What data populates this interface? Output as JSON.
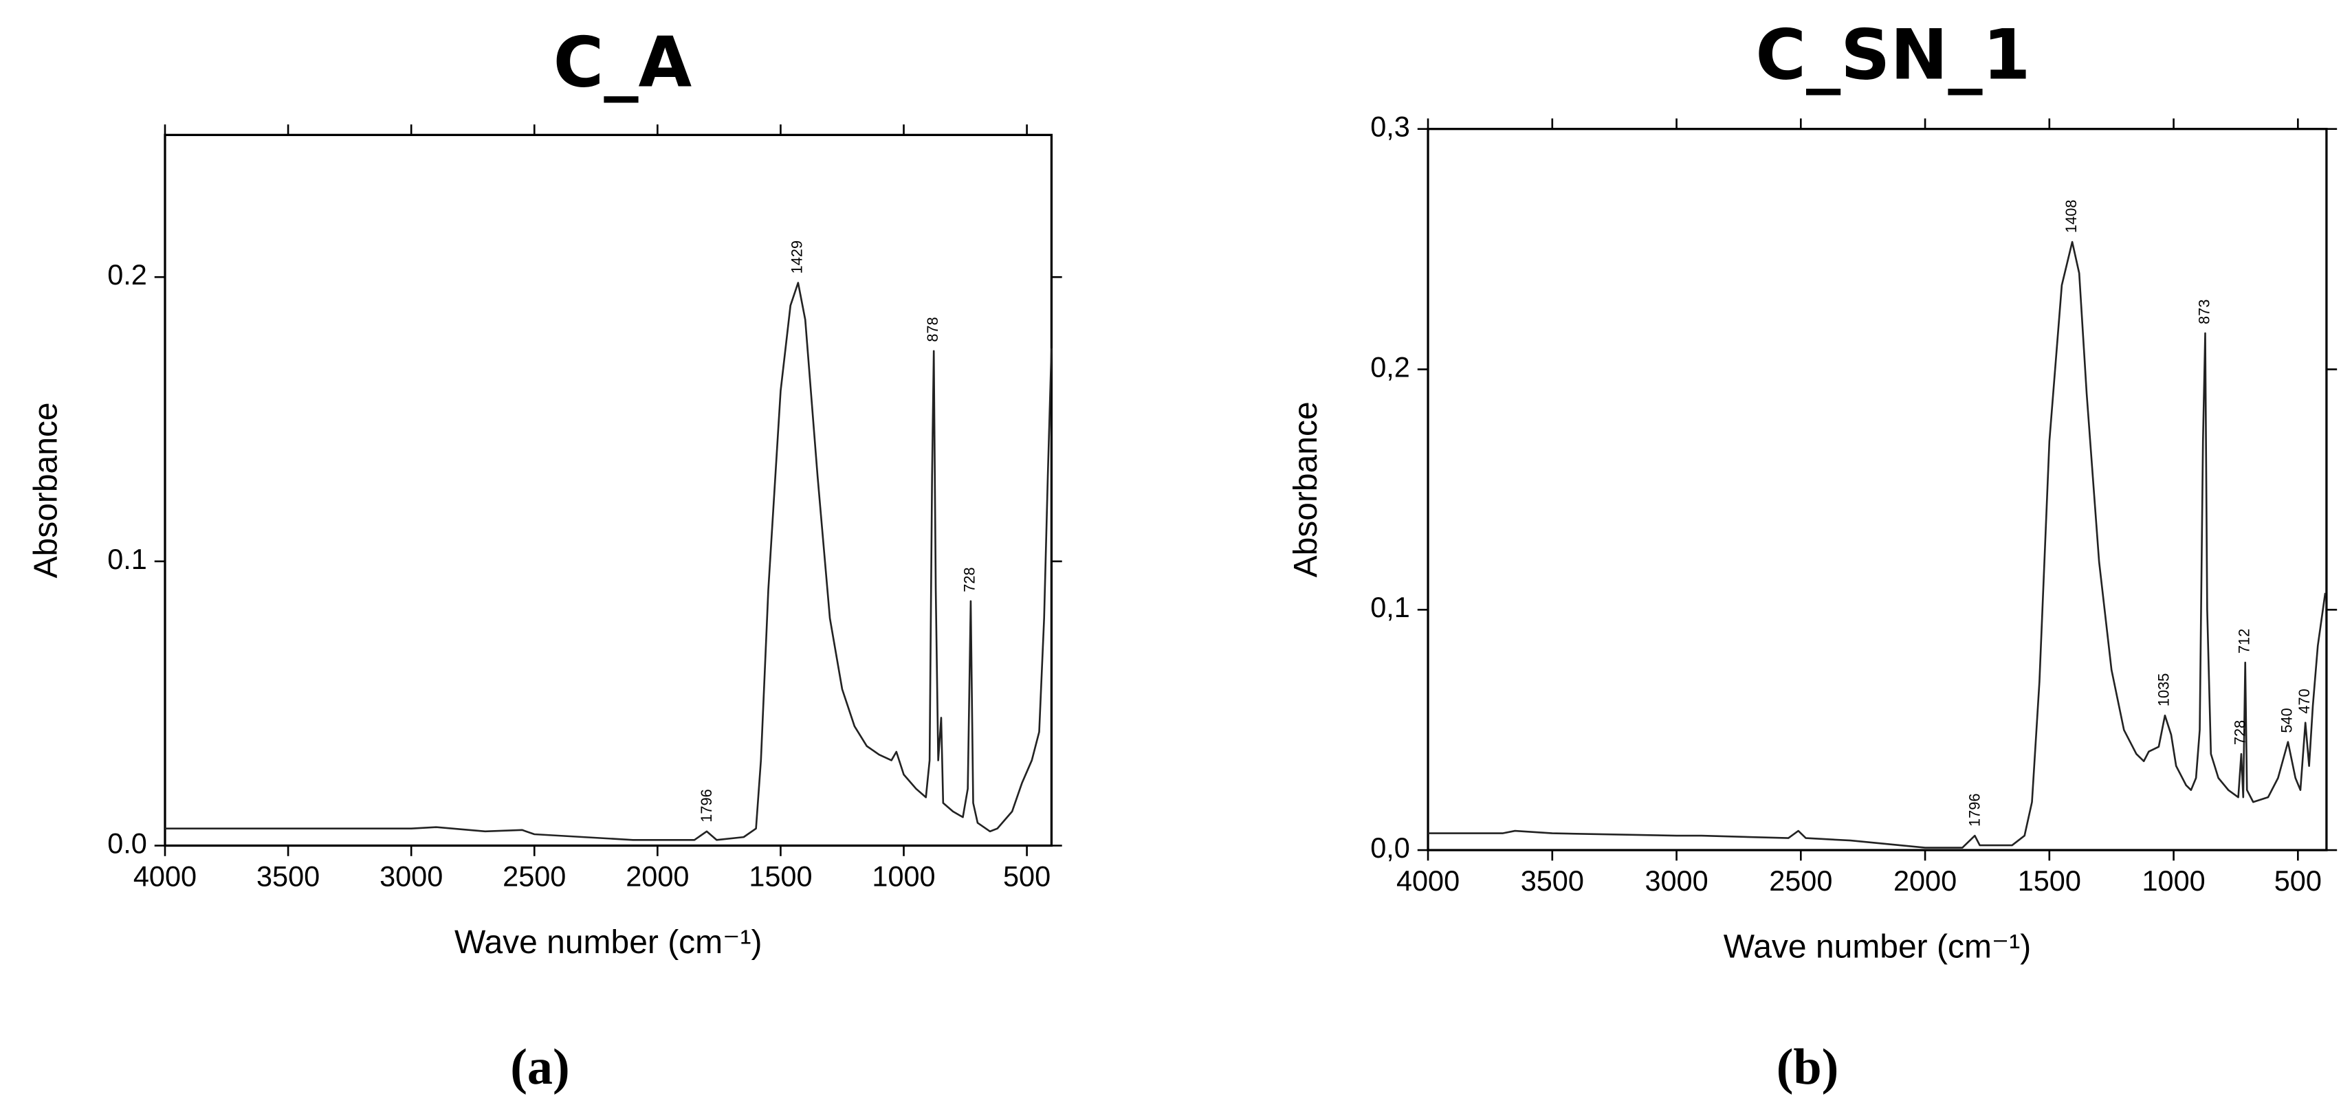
{
  "chart_data": [
    {
      "type": "line",
      "title": "C_A",
      "x_label": "Wave number (cm⁻¹)",
      "y_label": "Absorbance",
      "panel_label": "(a)",
      "xlim": [
        4000,
        400
      ],
      "ylim": [
        0,
        0.25
      ],
      "xticks": [
        4000,
        3500,
        3000,
        2500,
        2000,
        1500,
        1000,
        500
      ],
      "yticks": [
        {
          "value": 0,
          "label": "0.0"
        },
        0.1,
        0.2
      ],
      "color": "#222222",
      "x": [
        4000,
        3500,
        3000,
        2900,
        2700,
        2550,
        2500,
        2300,
        2100,
        2000,
        1850,
        1800,
        1760,
        1650,
        1600,
        1580,
        1550,
        1500,
        1460,
        1429,
        1400,
        1350,
        1300,
        1250,
        1200,
        1150,
        1100,
        1050,
        1030,
        1000,
        950,
        910,
        895,
        885,
        878,
        870,
        860,
        848,
        840,
        800,
        760,
        740,
        728,
        718,
        700,
        650,
        620,
        560,
        520,
        480,
        450,
        430,
        415,
        400
      ],
      "values": [
        0.006,
        0.006,
        0.006,
        0.0065,
        0.005,
        0.0055,
        0.004,
        0.003,
        0.002,
        0.002,
        0.002,
        0.005,
        0.002,
        0.003,
        0.006,
        0.03,
        0.09,
        0.16,
        0.19,
        0.198,
        0.185,
        0.13,
        0.08,
        0.055,
        0.042,
        0.035,
        0.032,
        0.03,
        0.033,
        0.025,
        0.02,
        0.017,
        0.03,
        0.13,
        0.174,
        0.09,
        0.03,
        0.045,
        0.015,
        0.012,
        0.01,
        0.02,
        0.086,
        0.015,
        0.008,
        0.005,
        0.006,
        0.012,
        0.022,
        0.03,
        0.04,
        0.08,
        0.13,
        0.175
      ],
      "annotations": [
        {
          "x": 1796,
          "y": 0.005
        },
        {
          "x": 1429,
          "y": 0.198
        },
        {
          "x": 878,
          "y": 0.174
        },
        {
          "x": 728,
          "y": 0.086
        }
      ]
    },
    {
      "type": "line",
      "title": "C_SN_1",
      "x_label": "Wave number (cm⁻¹)",
      "y_label": "Absorbance",
      "panel_label": "(b)",
      "xlim": [
        4000,
        385
      ],
      "ylim": [
        0,
        0.3
      ],
      "xticks": [
        4000,
        3500,
        3000,
        2500,
        2000,
        1500,
        1000,
        500
      ],
      "yticks": [
        {
          "value": 0,
          "label": "0,0"
        },
        {
          "value": 0.1,
          "label": "0,1"
        },
        {
          "value": 0.2,
          "label": "0,2"
        },
        {
          "value": 0.3,
          "label": "0,3"
        }
      ],
      "color": "#222222",
      "x": [
        4000,
        3700,
        3650,
        3500,
        3000,
        2900,
        2550,
        2510,
        2480,
        2300,
        2100,
        2000,
        1850,
        1800,
        1780,
        1650,
        1600,
        1570,
        1540,
        1500,
        1450,
        1408,
        1380,
        1350,
        1300,
        1250,
        1200,
        1150,
        1120,
        1100,
        1060,
        1035,
        1010,
        990,
        950,
        930,
        910,
        895,
        882,
        873,
        865,
        850,
        820,
        780,
        740,
        728,
        720,
        712,
        705,
        680,
        620,
        580,
        540,
        510,
        490,
        470,
        455,
        440,
        420,
        390
      ],
      "values": [
        0.007,
        0.007,
        0.008,
        0.007,
        0.006,
        0.006,
        0.005,
        0.008,
        0.005,
        0.004,
        0.002,
        0.001,
        0.001,
        0.006,
        0.002,
        0.002,
        0.006,
        0.02,
        0.07,
        0.17,
        0.235,
        0.253,
        0.24,
        0.19,
        0.12,
        0.075,
        0.05,
        0.04,
        0.037,
        0.041,
        0.043,
        0.056,
        0.048,
        0.035,
        0.027,
        0.025,
        0.03,
        0.05,
        0.17,
        0.215,
        0.1,
        0.04,
        0.03,
        0.025,
        0.022,
        0.04,
        0.022,
        0.078,
        0.025,
        0.02,
        0.022,
        0.03,
        0.045,
        0.03,
        0.025,
        0.053,
        0.035,
        0.06,
        0.085,
        0.107
      ],
      "annotations": [
        {
          "x": 1796,
          "y": 0.006
        },
        {
          "x": 1408,
          "y": 0.253
        },
        {
          "x": 1035,
          "y": 0.056
        },
        {
          "x": 873,
          "y": 0.215
        },
        {
          "x": 728,
          "y": 0.04
        },
        {
          "x": 712,
          "y": 0.078
        },
        {
          "x": 540,
          "y": 0.045
        },
        {
          "x": 470,
          "y": 0.053
        }
      ]
    }
  ]
}
